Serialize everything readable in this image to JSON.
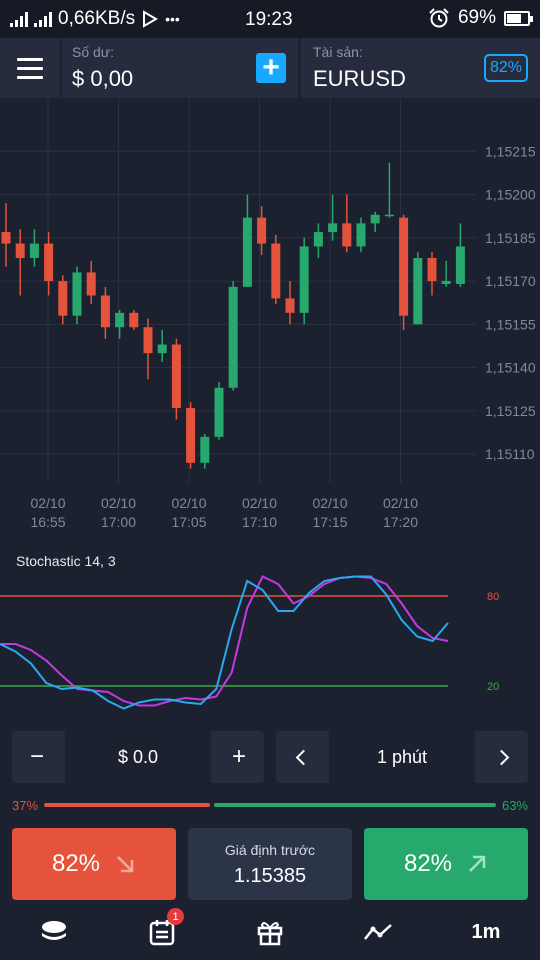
{
  "status_bar": {
    "network_speed": "0,66KB/s",
    "more_dots": "•••",
    "time": "19:23",
    "battery": "69%",
    "battery_level": 0.69
  },
  "header": {
    "balance_label": "Số dư:",
    "balance_value": "$ 0,00",
    "add_symbol": "+",
    "asset_label": "Tài sản:",
    "asset_value": "EURUSD",
    "payout": "82%"
  },
  "chart_data": [
    {
      "type": "candlestick",
      "y_ticks": [
        "1,15215",
        "1,15200",
        "1,15185",
        "1,15170",
        "1,15155",
        "1,15140",
        "1,15125",
        "1,15110"
      ],
      "y_tick_values": [
        1.15215,
        1.152,
        1.15185,
        1.1517,
        1.15155,
        1.1514,
        1.15125,
        1.1511
      ],
      "ylim": [
        1.151,
        1.1523
      ],
      "x_ticks": [
        {
          "date": "02/10",
          "time": "16:55"
        },
        {
          "date": "02/10",
          "time": "17:00"
        },
        {
          "date": "02/10",
          "time": "17:05"
        },
        {
          "date": "02/10",
          "time": "17:10"
        },
        {
          "date": "02/10",
          "time": "17:15"
        },
        {
          "date": "02/10",
          "time": "17:20"
        }
      ],
      "up_color": "#27a86d",
      "down_color": "#e5533c",
      "candles": [
        {
          "o": 1.15187,
          "h": 1.15197,
          "l": 1.15175,
          "c": 1.15183
        },
        {
          "o": 1.15183,
          "h": 1.15188,
          "l": 1.15165,
          "c": 1.15178
        },
        {
          "o": 1.15178,
          "h": 1.15188,
          "l": 1.15175,
          "c": 1.15183
        },
        {
          "o": 1.15183,
          "h": 1.15187,
          "l": 1.15165,
          "c": 1.1517
        },
        {
          "o": 1.1517,
          "h": 1.15172,
          "l": 1.15155,
          "c": 1.15158
        },
        {
          "o": 1.15158,
          "h": 1.15175,
          "l": 1.15155,
          "c": 1.15173
        },
        {
          "o": 1.15173,
          "h": 1.15177,
          "l": 1.15162,
          "c": 1.15165
        },
        {
          "o": 1.15165,
          "h": 1.15168,
          "l": 1.1515,
          "c": 1.15154
        },
        {
          "o": 1.15154,
          "h": 1.1516,
          "l": 1.1515,
          "c": 1.15159
        },
        {
          "o": 1.15159,
          "h": 1.1516,
          "l": 1.15153,
          "c": 1.15154
        },
        {
          "o": 1.15154,
          "h": 1.15157,
          "l": 1.15136,
          "c": 1.15145
        },
        {
          "o": 1.15145,
          "h": 1.15153,
          "l": 1.15142,
          "c": 1.15148
        },
        {
          "o": 1.15148,
          "h": 1.1515,
          "l": 1.15122,
          "c": 1.15126
        },
        {
          "o": 1.15126,
          "h": 1.15128,
          "l": 1.15105,
          "c": 1.15107
        },
        {
          "o": 1.15107,
          "h": 1.15117,
          "l": 1.15105,
          "c": 1.15116
        },
        {
          "o": 1.15116,
          "h": 1.15135,
          "l": 1.15115,
          "c": 1.15133
        },
        {
          "o": 1.15133,
          "h": 1.1517,
          "l": 1.15132,
          "c": 1.15168
        },
        {
          "o": 1.15168,
          "h": 1.152,
          "l": 1.15168,
          "c": 1.15192
        },
        {
          "o": 1.15192,
          "h": 1.15196,
          "l": 1.15179,
          "c": 1.15183
        },
        {
          "o": 1.15183,
          "h": 1.15186,
          "l": 1.15162,
          "c": 1.15164
        },
        {
          "o": 1.15164,
          "h": 1.1517,
          "l": 1.15155,
          "c": 1.15159
        },
        {
          "o": 1.15159,
          "h": 1.15185,
          "l": 1.15155,
          "c": 1.15182
        },
        {
          "o": 1.15182,
          "h": 1.1519,
          "l": 1.15178,
          "c": 1.15187
        },
        {
          "o": 1.15187,
          "h": 1.152,
          "l": 1.15184,
          "c": 1.1519
        },
        {
          "o": 1.1519,
          "h": 1.152,
          "l": 1.1518,
          "c": 1.15182
        },
        {
          "o": 1.15182,
          "h": 1.15192,
          "l": 1.1518,
          "c": 1.1519
        },
        {
          "o": 1.1519,
          "h": 1.15194,
          "l": 1.15187,
          "c": 1.15193
        },
        {
          "o": 1.15193,
          "h": 1.15211,
          "l": 1.15192,
          "c": 1.15193
        },
        {
          "o": 1.15192,
          "h": 1.15193,
          "l": 1.15153,
          "c": 1.15158
        },
        {
          "o": 1.15155,
          "h": 1.1518,
          "l": 1.15155,
          "c": 1.15178
        },
        {
          "o": 1.15178,
          "h": 1.1518,
          "l": 1.15165,
          "c": 1.1517
        },
        {
          "o": 1.15169,
          "h": 1.15177,
          "l": 1.15168,
          "c": 1.1517
        },
        {
          "o": 1.15169,
          "h": 1.1519,
          "l": 1.15168,
          "c": 1.15182
        }
      ]
    },
    {
      "type": "line",
      "title": "Stochastic 14, 3",
      "ylim": [
        0,
        100
      ],
      "levels": [
        {
          "value": 80,
          "label": "80",
          "color": "#e5533c"
        },
        {
          "value": 20,
          "label": "20",
          "color": "#3ba84a"
        }
      ],
      "series": [
        {
          "color": "#2aa8f2",
          "values": [
            48,
            43,
            35,
            22,
            18,
            19,
            17,
            10,
            5,
            9,
            11,
            11,
            9,
            8,
            18,
            58,
            90,
            84,
            70,
            70,
            82,
            90,
            92,
            93,
            93,
            81,
            64,
            53,
            50,
            62
          ]
        },
        {
          "color": "#c23ae0",
          "values": [
            48,
            48,
            44,
            37,
            27,
            18,
            17,
            16,
            10,
            7,
            7,
            10,
            12,
            11,
            13,
            29,
            72,
            93,
            88,
            75,
            80,
            88,
            92,
            93,
            92,
            88,
            75,
            60,
            52,
            50
          ]
        }
      ]
    }
  ],
  "controls": {
    "amount_minus": "−",
    "amount_value": "$ 0.0",
    "amount_plus": "+",
    "time_value": "1 phút"
  },
  "sentiment": {
    "down_pct": "37%",
    "up_pct": "63%",
    "down_fraction": 0.37,
    "down_color": "#e5533c",
    "up_color": "#27a86d"
  },
  "trade": {
    "down_label": "82%",
    "strike_label": "Giá định trước",
    "strike_value": "1.15385",
    "up_label": "82%"
  },
  "bottom_nav": {
    "trades_badge": "1",
    "timeframe_label": "1m"
  }
}
